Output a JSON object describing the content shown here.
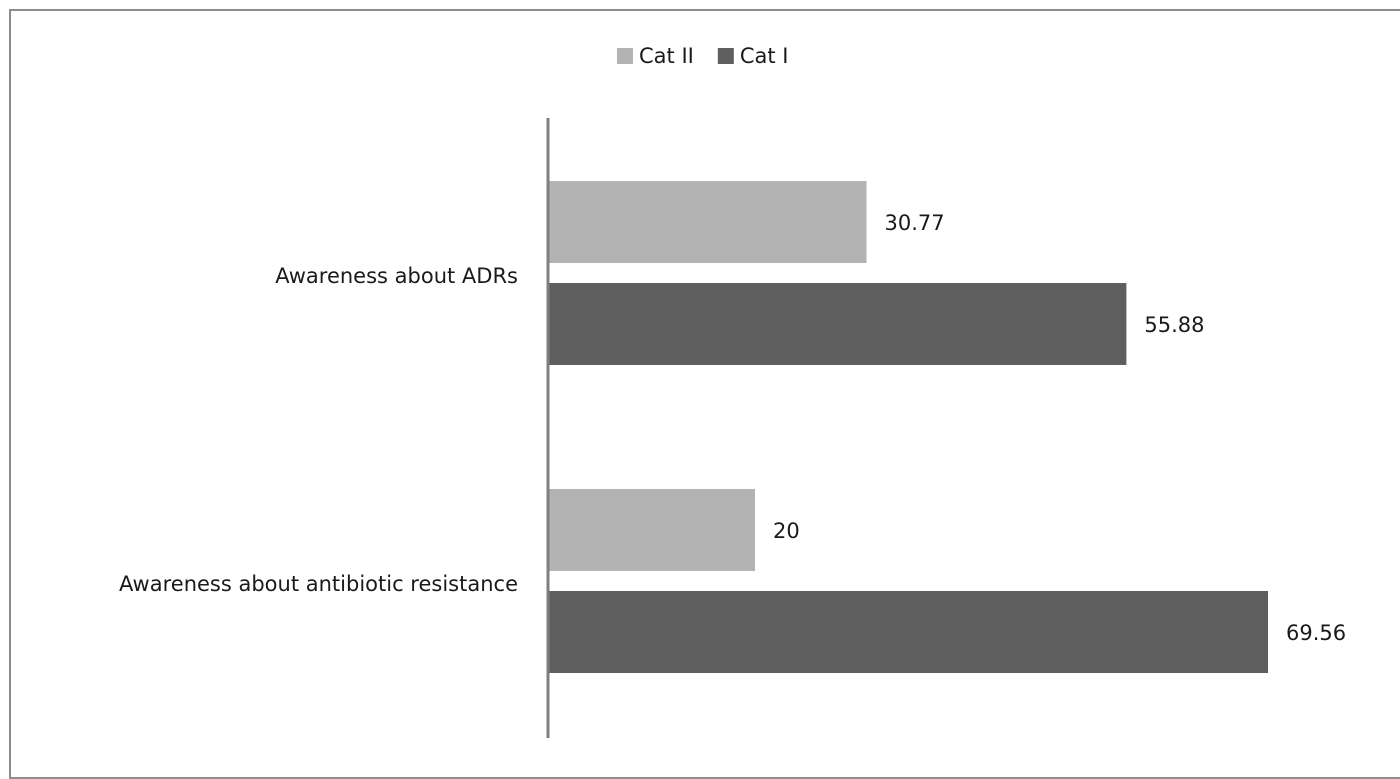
{
  "chart_data": {
    "type": "bar",
    "orientation": "horizontal",
    "categories": [
      "Awareness about ADRs",
      "Awareness about antibiotic resistance"
    ],
    "series": [
      {
        "name": "Cat II",
        "values": [
          30.77,
          20
        ],
        "color": "#b3b3b3"
      },
      {
        "name": "Cat I",
        "values": [
          55.88,
          69.56
        ],
        "color": "#5f5f5f"
      }
    ],
    "legend_order": [
      "Cat II",
      "Cat I"
    ],
    "legend_position": "top",
    "xlim": [
      0,
      75
    ],
    "x_axis_visible": false,
    "grid": false
  }
}
